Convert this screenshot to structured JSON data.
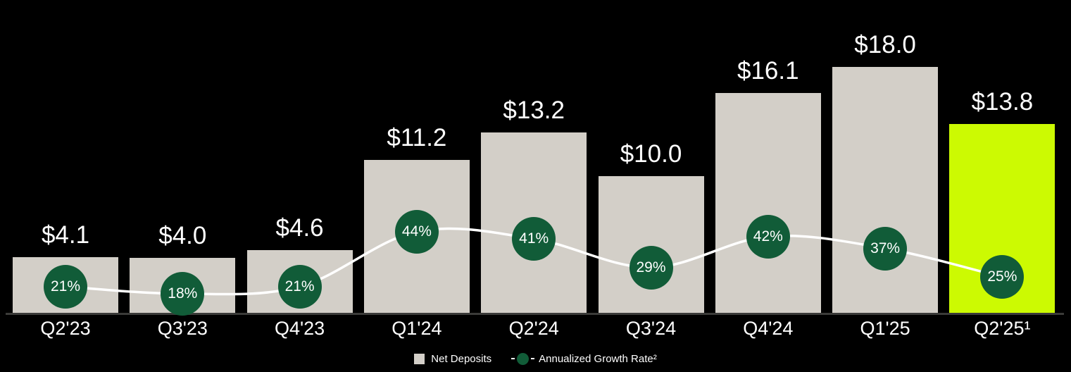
{
  "chart_data": {
    "type": "bar",
    "title": "",
    "categories": [
      "Q2'23",
      "Q3'23",
      "Q4'23",
      "Q1'24",
      "Q2'24",
      "Q3'24",
      "Q4'24",
      "Q1'25",
      "Q2'25¹"
    ],
    "series": [
      {
        "name": "Net Deposits",
        "type": "bar",
        "values": [
          4.1,
          4.0,
          4.6,
          11.2,
          13.2,
          10.0,
          16.1,
          18.0,
          13.8
        ],
        "labels": [
          "$4.1",
          "$4.0",
          "$4.6",
          "$11.2",
          "$13.2",
          "$10.0",
          "$16.1",
          "$18.0",
          "$13.8"
        ],
        "highlighted_index": 8
      },
      {
        "name": "Annualized Growth Rate²",
        "type": "line",
        "values": [
          21,
          18,
          21,
          44,
          41,
          29,
          42,
          37,
          25
        ],
        "labels": [
          "21%",
          "18%",
          "21%",
          "44%",
          "41%",
          "29%",
          "42%",
          "37%",
          "25%"
        ]
      }
    ],
    "ylim": [
      0,
      18
    ],
    "grid": false,
    "legend_position": "bottom-center",
    "colors": {
      "background": "#000000",
      "bar": "#d3cfc8",
      "bar_highlight": "#ccfa02",
      "marker": "#115c38",
      "line": "#ffffff",
      "axis": "#3b3b39",
      "text": "#ffffff"
    }
  },
  "legend": {
    "net_deposits_label": "Net Deposits",
    "growth_rate_label": "Annualized Growth Rate²"
  }
}
